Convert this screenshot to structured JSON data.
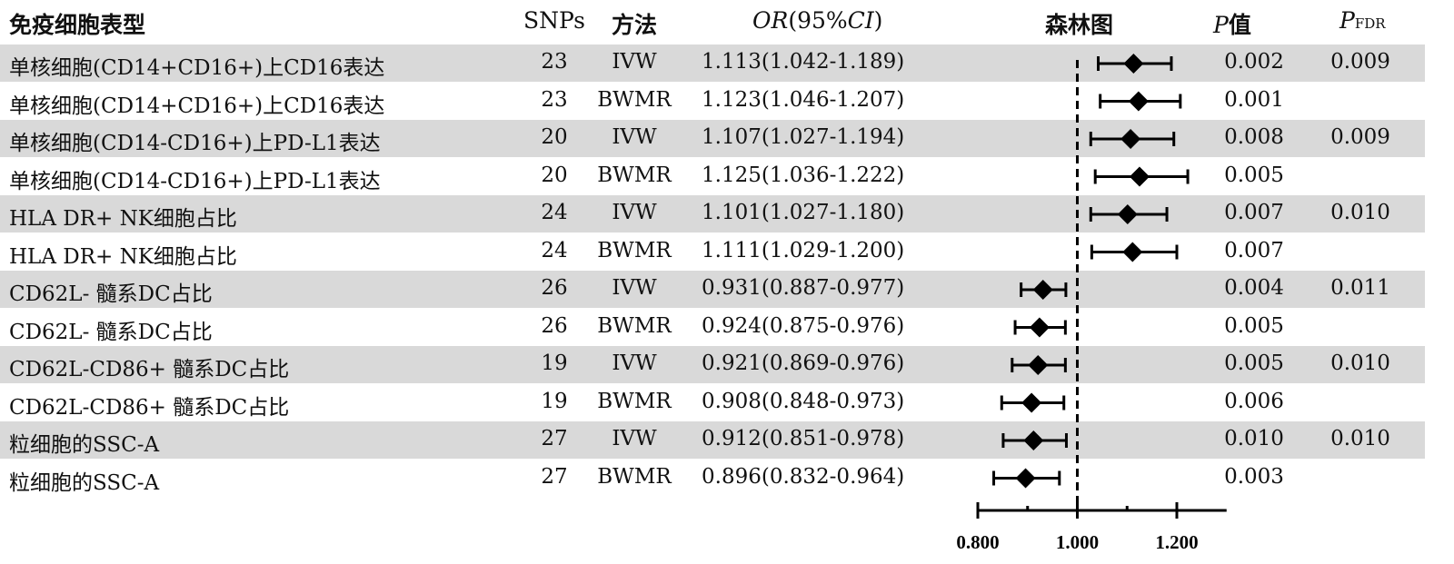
{
  "header": {
    "phenotype": "免疫细胞表型",
    "snps": "SNPs",
    "method": "方法",
    "or_italic": "OR",
    "or_rest": "(95%",
    "ci_italic": "CI",
    "or_close": ")",
    "forest": "森林图",
    "p_italic": "P",
    "p_rest": "值",
    "fdr_italic": "P",
    "fdr_sub": "FDR"
  },
  "colors": {
    "row_shade": "#d9d9d9",
    "marker": "#000000"
  },
  "chart_data": {
    "type": "forest",
    "xlim": [
      0.8,
      1.3
    ],
    "ticks": [
      0.8,
      0.9,
      1.0,
      1.1,
      1.2
    ],
    "tick_labels": [
      "0.800",
      "1.000",
      "1.200"
    ],
    "reference_line": 1.0,
    "rows": [
      {
        "name": "单核细胞(CD14+CD16+)上CD16表达",
        "snps": "23",
        "method": "IVW",
        "or": 1.113,
        "lo": 1.042,
        "hi": 1.189,
        "or_text": "1.113(1.042-1.189)",
        "p": "0.002",
        "fdr": "0.009"
      },
      {
        "name": "单核细胞(CD14+CD16+)上CD16表达",
        "snps": "23",
        "method": "BWMR",
        "or": 1.123,
        "lo": 1.046,
        "hi": 1.207,
        "or_text": "1.123(1.046-1.207)",
        "p": "0.001",
        "fdr": ""
      },
      {
        "name": "单核细胞(CD14-CD16+)上PD-L1表达",
        "snps": "20",
        "method": "IVW",
        "or": 1.107,
        "lo": 1.027,
        "hi": 1.194,
        "or_text": "1.107(1.027-1.194)",
        "p": "0.008",
        "fdr": "0.009"
      },
      {
        "name": "单核细胞(CD14-CD16+)上PD-L1表达",
        "snps": "20",
        "method": "BWMR",
        "or": 1.125,
        "lo": 1.036,
        "hi": 1.222,
        "or_text": "1.125(1.036-1.222)",
        "p": "0.005",
        "fdr": ""
      },
      {
        "name": "HLA DR+ NK细胞占比",
        "snps": "24",
        "method": "IVW",
        "or": 1.101,
        "lo": 1.027,
        "hi": 1.18,
        "or_text": "1.101(1.027-1.180)",
        "p": "0.007",
        "fdr": "0.010"
      },
      {
        "name": "HLA DR+ NK细胞占比",
        "snps": "24",
        "method": "BWMR",
        "or": 1.111,
        "lo": 1.029,
        "hi": 1.2,
        "or_text": "1.111(1.029-1.200)",
        "p": "0.007",
        "fdr": ""
      },
      {
        "name": "CD62L- 髓系DC占比",
        "snps": "26",
        "method": "IVW",
        "or": 0.931,
        "lo": 0.887,
        "hi": 0.977,
        "or_text": "0.931(0.887-0.977)",
        "p": "0.004",
        "fdr": "0.011"
      },
      {
        "name": "CD62L- 髓系DC占比",
        "snps": "26",
        "method": "BWMR",
        "or": 0.924,
        "lo": 0.875,
        "hi": 0.976,
        "or_text": "0.924(0.875-0.976)",
        "p": "0.005",
        "fdr": ""
      },
      {
        "name": "CD62L-CD86+ 髓系DC占比",
        "snps": "19",
        "method": "IVW",
        "or": 0.921,
        "lo": 0.869,
        "hi": 0.976,
        "or_text": "0.921(0.869-0.976)",
        "p": "0.005",
        "fdr": "0.010"
      },
      {
        "name": "CD62L-CD86+ 髓系DC占比",
        "snps": "19",
        "method": "BWMR",
        "or": 0.908,
        "lo": 0.848,
        "hi": 0.973,
        "or_text": "0.908(0.848-0.973)",
        "p": "0.006",
        "fdr": ""
      },
      {
        "name": "粒细胞的SSC-A",
        "snps": "27",
        "method": "IVW",
        "or": 0.912,
        "lo": 0.851,
        "hi": 0.978,
        "or_text": "0.912(0.851-0.978)",
        "p": "0.010",
        "fdr": "0.010"
      },
      {
        "name": "粒细胞的SSC-A",
        "snps": "27",
        "method": "BWMR",
        "or": 0.896,
        "lo": 0.832,
        "hi": 0.964,
        "or_text": "0.896(0.832-0.964)",
        "p": "0.003",
        "fdr": ""
      }
    ]
  }
}
